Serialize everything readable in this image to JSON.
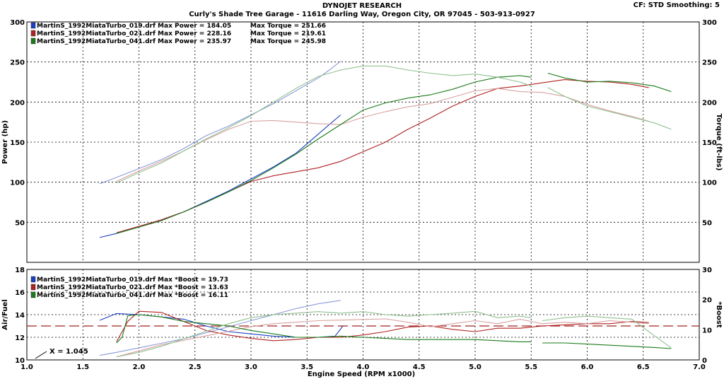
{
  "header": {
    "title": "DYNOJET RESEARCH",
    "subtitle": "Curly's Shade Tree Garage - 11616 Darling Way, Oregon City, OR 97045 - 503-913-0927",
    "settings": "CF: STD  Smoothing: 5"
  },
  "chart_data": [
    {
      "type": "line",
      "xlabel": "Engine Speed (RPM x1000)",
      "ylabel": "Power (hp)",
      "y2label": "Torque (ft-lbs)",
      "xlim": [
        1.0,
        7.0
      ],
      "ylim": [
        0,
        300
      ],
      "y2lim": [
        0,
        300
      ],
      "xticks": [
        "1.0",
        "1.5",
        "2.0",
        "2.5",
        "3.0",
        "3.5",
        "4.0",
        "4.5",
        "5.0",
        "5.5",
        "6.0",
        "6.5",
        "7.0"
      ],
      "yticks": [
        "0",
        "50",
        "100",
        "150",
        "200",
        "250",
        "300"
      ],
      "grid": true,
      "legend": [
        {
          "file": "MartinS_1992MiataTurbo_019.drf",
          "power_label": "Max Power = 184.05",
          "torque_label": "Max Torque = 251.66",
          "color": "#1a3fc4"
        },
        {
          "file": "MartinS_1992MiataTurbo_021.drf",
          "power_label": "Max Power = 228.16",
          "torque_label": "Max Torque = 219.61",
          "color": "#b02020"
        },
        {
          "file": "MartinS_1992MiataTurbo_041.drf",
          "power_label": "Max Power = 235.97",
          "torque_label": "Max Torque = 245.98",
          "color": "#1a7a1a"
        }
      ],
      "series": [
        {
          "run": "019",
          "quantity": "power",
          "color": "#1a3fc4",
          "x": [
            1.65,
            1.8,
            2.0,
            2.2,
            2.4,
            2.6,
            2.8,
            3.0,
            3.2,
            3.4,
            3.5,
            3.6,
            3.7,
            3.8
          ],
          "y": [
            31,
            36,
            44,
            53,
            63,
            76,
            89,
            104,
            119,
            136,
            148,
            160,
            172,
            184
          ]
        },
        {
          "run": "019",
          "quantity": "torque",
          "color": "#8a9ad8",
          "x": [
            1.65,
            1.8,
            2.0,
            2.2,
            2.4,
            2.6,
            2.8,
            3.0,
            3.2,
            3.4,
            3.6,
            3.7,
            3.8
          ],
          "y": [
            98,
            106,
            117,
            128,
            142,
            158,
            170,
            184,
            198,
            214,
            230,
            240,
            251
          ]
        },
        {
          "run": "021",
          "quantity": "power",
          "color": "#b02020",
          "x": [
            1.8,
            2.0,
            2.2,
            2.4,
            2.6,
            2.8,
            3.0,
            3.2,
            3.4,
            3.6,
            3.8,
            4.0,
            4.2,
            4.4,
            4.6,
            4.8,
            5.0,
            5.2,
            5.4,
            5.6,
            5.8,
            6.0,
            6.2,
            6.4,
            6.55
          ],
          "y": [
            37,
            45,
            53,
            63,
            75,
            88,
            101,
            108,
            113,
            118,
            126,
            138,
            150,
            166,
            180,
            195,
            207,
            217,
            220,
            224,
            228,
            226,
            225,
            222,
            218
          ]
        },
        {
          "run": "021",
          "quantity": "torque",
          "color": "#d8a0a0",
          "x": [
            1.8,
            2.0,
            2.2,
            2.4,
            2.6,
            2.8,
            3.0,
            3.2,
            3.4,
            3.6,
            3.8,
            4.0,
            4.2,
            4.4,
            4.6,
            4.8,
            5.0,
            5.2,
            5.4,
            5.6,
            5.8,
            6.0,
            6.2,
            6.4,
            6.55
          ],
          "y": [
            101,
            114,
            126,
            139,
            153,
            166,
            176,
            177,
            175,
            173,
            172,
            181,
            188,
            194,
            198,
            206,
            214,
            217,
            213,
            212,
            207,
            197,
            189,
            182,
            176
          ]
        },
        {
          "run": "041",
          "quantity": "power",
          "color": "#1a7a1a",
          "x": [
            1.8,
            2.0,
            2.2,
            2.4,
            2.6,
            2.8,
            3.0,
            3.2,
            3.4,
            3.6,
            3.8,
            4.0,
            4.2,
            4.4,
            4.6,
            4.8,
            5.0,
            5.2,
            5.4,
            5.5,
            5.65,
            5.8,
            6.0,
            6.2,
            6.4,
            6.6,
            6.75
          ],
          "y": [
            36,
            44,
            52,
            63,
            75,
            88,
            102,
            118,
            135,
            154,
            172,
            190,
            199,
            205,
            209,
            216,
            225,
            231,
            233,
            231,
            236,
            230,
            225,
            226,
            224,
            220,
            213
          ],
          "gap_after": 5.5
        },
        {
          "run": "041",
          "quantity": "torque",
          "color": "#90c090",
          "x": [
            1.8,
            2.0,
            2.2,
            2.4,
            2.6,
            2.8,
            3.0,
            3.2,
            3.4,
            3.6,
            3.8,
            4.0,
            4.2,
            4.4,
            4.6,
            4.8,
            5.0,
            5.2,
            5.4,
            5.5,
            5.65,
            5.8,
            6.0,
            6.2,
            6.4,
            6.6,
            6.75
          ],
          "y": [
            99,
            112,
            124,
            139,
            154,
            168,
            183,
            200,
            217,
            232,
            240,
            245,
            245,
            240,
            236,
            233,
            235,
            231,
            225,
            220,
            218,
            207,
            195,
            188,
            181,
            174,
            166
          ],
          "gap_after": 5.5
        }
      ]
    },
    {
      "type": "line",
      "xlabel": "Engine Speed (RPM x1000)",
      "ylabel": "Air/Fuel",
      "y2label": "*Boost",
      "xlim": [
        1.0,
        7.0
      ],
      "ylim": [
        10,
        18
      ],
      "y2lim": [
        0,
        30
      ],
      "yticks": [
        "10",
        "12",
        "14",
        "16",
        "18"
      ],
      "y2ticks": [
        "0",
        "10",
        "20",
        "30"
      ],
      "grid": true,
      "reference_line": {
        "y": 13.0,
        "color": "#a02020",
        "style": "dashed"
      },
      "annotation": "X = 1.045",
      "legend": [
        {
          "file": "MartinS_1992MiataTurbo_019.drf",
          "boost_label": "Max *Boost = 19.73",
          "color": "#1a3fc4"
        },
        {
          "file": "MartinS_1992MiataTurbo_021.drf",
          "boost_label": "Max *Boost = 13.63",
          "color": "#b02020"
        },
        {
          "file": "MartinS_1992MiataTurbo_041.drf",
          "boost_label": "Max *Boost = 16.11",
          "color": "#1a7a1a"
        }
      ],
      "series": [
        {
          "run": "019",
          "quantity": "air_fuel",
          "color": "#1a3fc4",
          "x": [
            1.65,
            1.8,
            2.0,
            2.2,
            2.4,
            2.6,
            2.8,
            3.0,
            3.2,
            3.4,
            3.6,
            3.75,
            3.82
          ],
          "y": [
            13.5,
            14.1,
            14.0,
            13.8,
            13.6,
            13.0,
            12.5,
            12.3,
            12.1,
            12.0,
            12.0,
            12.1,
            13.0
          ]
        },
        {
          "run": "019",
          "quantity": "boost",
          "color": "#8a9ad8",
          "axis": "y2",
          "x": [
            1.65,
            1.8,
            2.0,
            2.2,
            2.4,
            2.6,
            2.8,
            3.0,
            3.2,
            3.4,
            3.6,
            3.8
          ],
          "y": [
            1.5,
            2.5,
            4.0,
            5.5,
            7.0,
            9.0,
            11.0,
            13.0,
            15.0,
            17.0,
            18.6,
            19.7
          ]
        },
        {
          "run": "021",
          "quantity": "air_fuel",
          "color": "#b02020",
          "x": [
            1.8,
            1.9,
            2.0,
            2.2,
            2.4,
            2.6,
            2.8,
            3.0,
            3.2,
            3.4,
            3.6,
            3.8,
            4.0,
            4.2,
            4.4,
            4.6,
            4.8,
            5.0,
            5.2,
            5.4,
            5.6,
            5.8,
            6.0,
            6.2,
            6.4,
            6.55
          ],
          "y": [
            11.6,
            13.4,
            14.3,
            14.2,
            13.4,
            12.6,
            12.2,
            11.9,
            11.7,
            11.8,
            12.0,
            12.0,
            12.2,
            12.5,
            12.9,
            13.0,
            12.7,
            12.5,
            12.8,
            12.8,
            13.0,
            13.1,
            13.2,
            13.2,
            13.4,
            13.3
          ]
        },
        {
          "run": "021",
          "quantity": "boost",
          "color": "#d8a0a0",
          "axis": "y2",
          "x": [
            1.8,
            2.0,
            2.2,
            2.4,
            2.6,
            2.8,
            3.0,
            3.2,
            3.4,
            3.6,
            3.8,
            4.0,
            4.2,
            4.4,
            4.6,
            4.8,
            5.0,
            5.2,
            5.4,
            5.6,
            5.8,
            6.0,
            6.2,
            6.4,
            6.55
          ],
          "y": [
            1.0,
            3.0,
            5.0,
            6.5,
            8.0,
            9.5,
            11.0,
            12.0,
            12.5,
            13.0,
            13.2,
            13.4,
            13.6,
            12.5,
            11.0,
            12.0,
            13.0,
            12.0,
            13.5,
            12.0,
            12.5,
            12.0,
            13.0,
            12.5,
            12.0
          ]
        },
        {
          "run": "041",
          "quantity": "air_fuel",
          "color": "#1a7a1a",
          "x": [
            1.8,
            1.85,
            1.9,
            2.0,
            2.2,
            2.4,
            2.6,
            2.8,
            3.0,
            3.2,
            3.4,
            3.6,
            3.8,
            4.0,
            4.2,
            4.4,
            4.6,
            4.8,
            5.0,
            5.2,
            5.4,
            5.5,
            5.6,
            5.8,
            6.0,
            6.2,
            6.4,
            6.6,
            6.75
          ],
          "y": [
            11.5,
            12.0,
            13.9,
            14.0,
            13.8,
            13.4,
            13.2,
            13.0,
            12.6,
            12.3,
            12.0,
            12.0,
            12.1,
            12.0,
            11.9,
            11.8,
            11.8,
            11.8,
            11.8,
            11.7,
            11.6,
            11.6,
            11.5,
            11.5,
            11.4,
            11.3,
            11.2,
            11.1,
            11.0
          ],
          "gap_after": 5.5
        },
        {
          "run": "041",
          "quantity": "boost",
          "color": "#90c090",
          "axis": "y2",
          "x": [
            1.8,
            2.0,
            2.2,
            2.4,
            2.6,
            2.8,
            3.0,
            3.2,
            3.4,
            3.6,
            3.8,
            4.0,
            4.2,
            4.4,
            4.6,
            4.8,
            5.0,
            5.2,
            5.4,
            5.5,
            5.6,
            5.8,
            6.0,
            6.2,
            6.4,
            6.6,
            6.75
          ],
          "y": [
            1.0,
            2.5,
            4.5,
            7.0,
            9.5,
            12.0,
            14.0,
            15.0,
            15.5,
            16.0,
            15.5,
            16.0,
            15.0,
            14.5,
            15.0,
            15.5,
            16.1,
            14.0,
            14.5,
            14.0,
            13.0,
            14.0,
            14.5,
            14.0,
            13.5,
            8.0,
            4.0
          ],
          "gap_after": 5.5
        }
      ]
    }
  ]
}
